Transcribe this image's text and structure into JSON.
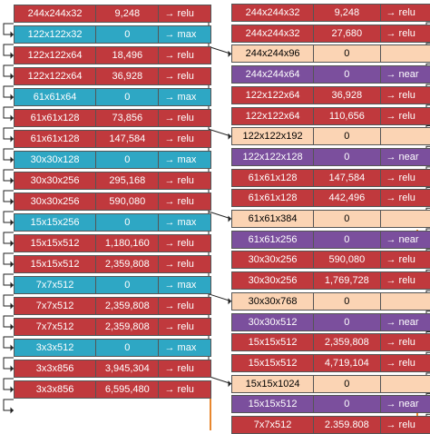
{
  "colors": {
    "relu": "#c0393d",
    "max": "#2ea7c4",
    "near": "#7b4f9d",
    "concat": "#fbd4b4",
    "line": "#222222",
    "skip": "#e8872e"
  },
  "encoder": [
    {
      "shape": "244x244x32",
      "params": "9,248",
      "op": "→ relu",
      "type": "relu"
    },
    {
      "shape": "122x122x32",
      "params": "0",
      "op": "→ max",
      "type": "max"
    },
    {
      "shape": "122x122x64",
      "params": "18,496",
      "op": "→ relu",
      "type": "relu"
    },
    {
      "shape": "122x122x64",
      "params": "36,928",
      "op": "→ relu",
      "type": "relu"
    },
    {
      "shape": "61x61x64",
      "params": "0",
      "op": "→ max",
      "type": "max"
    },
    {
      "shape": "61x61x128",
      "params": "73,856",
      "op": "→ relu",
      "type": "relu"
    },
    {
      "shape": "61x61x128",
      "params": "147,584",
      "op": "→ relu",
      "type": "relu"
    },
    {
      "shape": "30x30x128",
      "params": "0",
      "op": "→ max",
      "type": "max"
    },
    {
      "shape": "30x30x256",
      "params": "295,168",
      "op": "→ relu",
      "type": "relu"
    },
    {
      "shape": "30x30x256",
      "params": "590,080",
      "op": "→ relu",
      "type": "relu"
    },
    {
      "shape": "15x15x256",
      "params": "0",
      "op": "→ max",
      "type": "max"
    },
    {
      "shape": "15x15x512",
      "params": "1,180,160",
      "op": "→ relu",
      "type": "relu"
    },
    {
      "shape": "15x15x512",
      "params": "2,359,808",
      "op": "→ relu",
      "type": "relu"
    },
    {
      "shape": "7x7x512",
      "params": "0",
      "op": "→ max",
      "type": "max"
    },
    {
      "shape": "7x7x512",
      "params": "2,359,808",
      "op": "→ relu",
      "type": "relu"
    },
    {
      "shape": "7x7x512",
      "params": "2,359,808",
      "op": "→ relu",
      "type": "relu"
    },
    {
      "shape": "3x3x512",
      "params": "0",
      "op": "→ max",
      "type": "max"
    },
    {
      "shape": "3x3x856",
      "params": "3,945,304",
      "op": "→ relu",
      "type": "relu"
    },
    {
      "shape": "3x3x856",
      "params": "6,595,480",
      "op": "→ relu",
      "type": "relu"
    }
  ],
  "decoder": [
    {
      "shape": "244x244x32",
      "params": "9,248",
      "op": "→ relu",
      "type": "relu"
    },
    {
      "shape": "244x244x32",
      "params": "27,680",
      "op": "→ relu",
      "type": "relu"
    },
    {
      "shape": "244x244x96",
      "params": "0",
      "op": "",
      "type": "concat"
    },
    {
      "shape": "244x244x64",
      "params": "0",
      "op": "→ near",
      "type": "near"
    },
    {
      "shape": "122x122x64",
      "params": "36,928",
      "op": "→ relu",
      "type": "relu"
    },
    {
      "shape": "122x122x64",
      "params": "110,656",
      "op": "→ relu",
      "type": "relu"
    },
    {
      "shape": "122x122x192",
      "params": "0",
      "op": "",
      "type": "concat"
    },
    {
      "shape": "122x122x128",
      "params": "0",
      "op": "→ near",
      "type": "near"
    },
    {
      "shape": "61x61x128",
      "params": "147,584",
      "op": "→ relu",
      "type": "relu"
    },
    {
      "shape": "61x61x128",
      "params": "442,496",
      "op": "→ relu",
      "type": "relu"
    },
    {
      "shape": "61x61x384",
      "params": "0",
      "op": "",
      "type": "concat"
    },
    {
      "shape": "61x61x256",
      "params": "0",
      "op": "→ near",
      "type": "near"
    },
    {
      "shape": "30x30x256",
      "params": "590,080",
      "op": "→ relu",
      "type": "relu"
    },
    {
      "shape": "30x30x256",
      "params": "1,769,728",
      "op": "→ relu",
      "type": "relu"
    },
    {
      "shape": "30x30x768",
      "params": "0",
      "op": "",
      "type": "concat"
    },
    {
      "shape": "30x30x512",
      "params": "0",
      "op": "→ near",
      "type": "near"
    },
    {
      "shape": "15x15x512",
      "params": "2,359,808",
      "op": "→ relu",
      "type": "relu"
    },
    {
      "shape": "15x15x512",
      "params": "4,719,104",
      "op": "→ relu",
      "type": "relu"
    },
    {
      "shape": "15x15x1024",
      "params": "0",
      "op": "",
      "type": "concat"
    },
    {
      "shape": "15x15x512",
      "params": "0",
      "op": "→ near",
      "type": "near"
    },
    {
      "shape": "7x7x512",
      "params": "2.359.808",
      "op": "→ relu",
      "type": "relu"
    }
  ],
  "skip_links": [
    {
      "from": 0,
      "to": 2
    },
    {
      "from": 3,
      "to": 6
    },
    {
      "from": 6,
      "to": 10
    },
    {
      "from": 9,
      "to": 14
    },
    {
      "from": 12,
      "to": 18
    }
  ]
}
